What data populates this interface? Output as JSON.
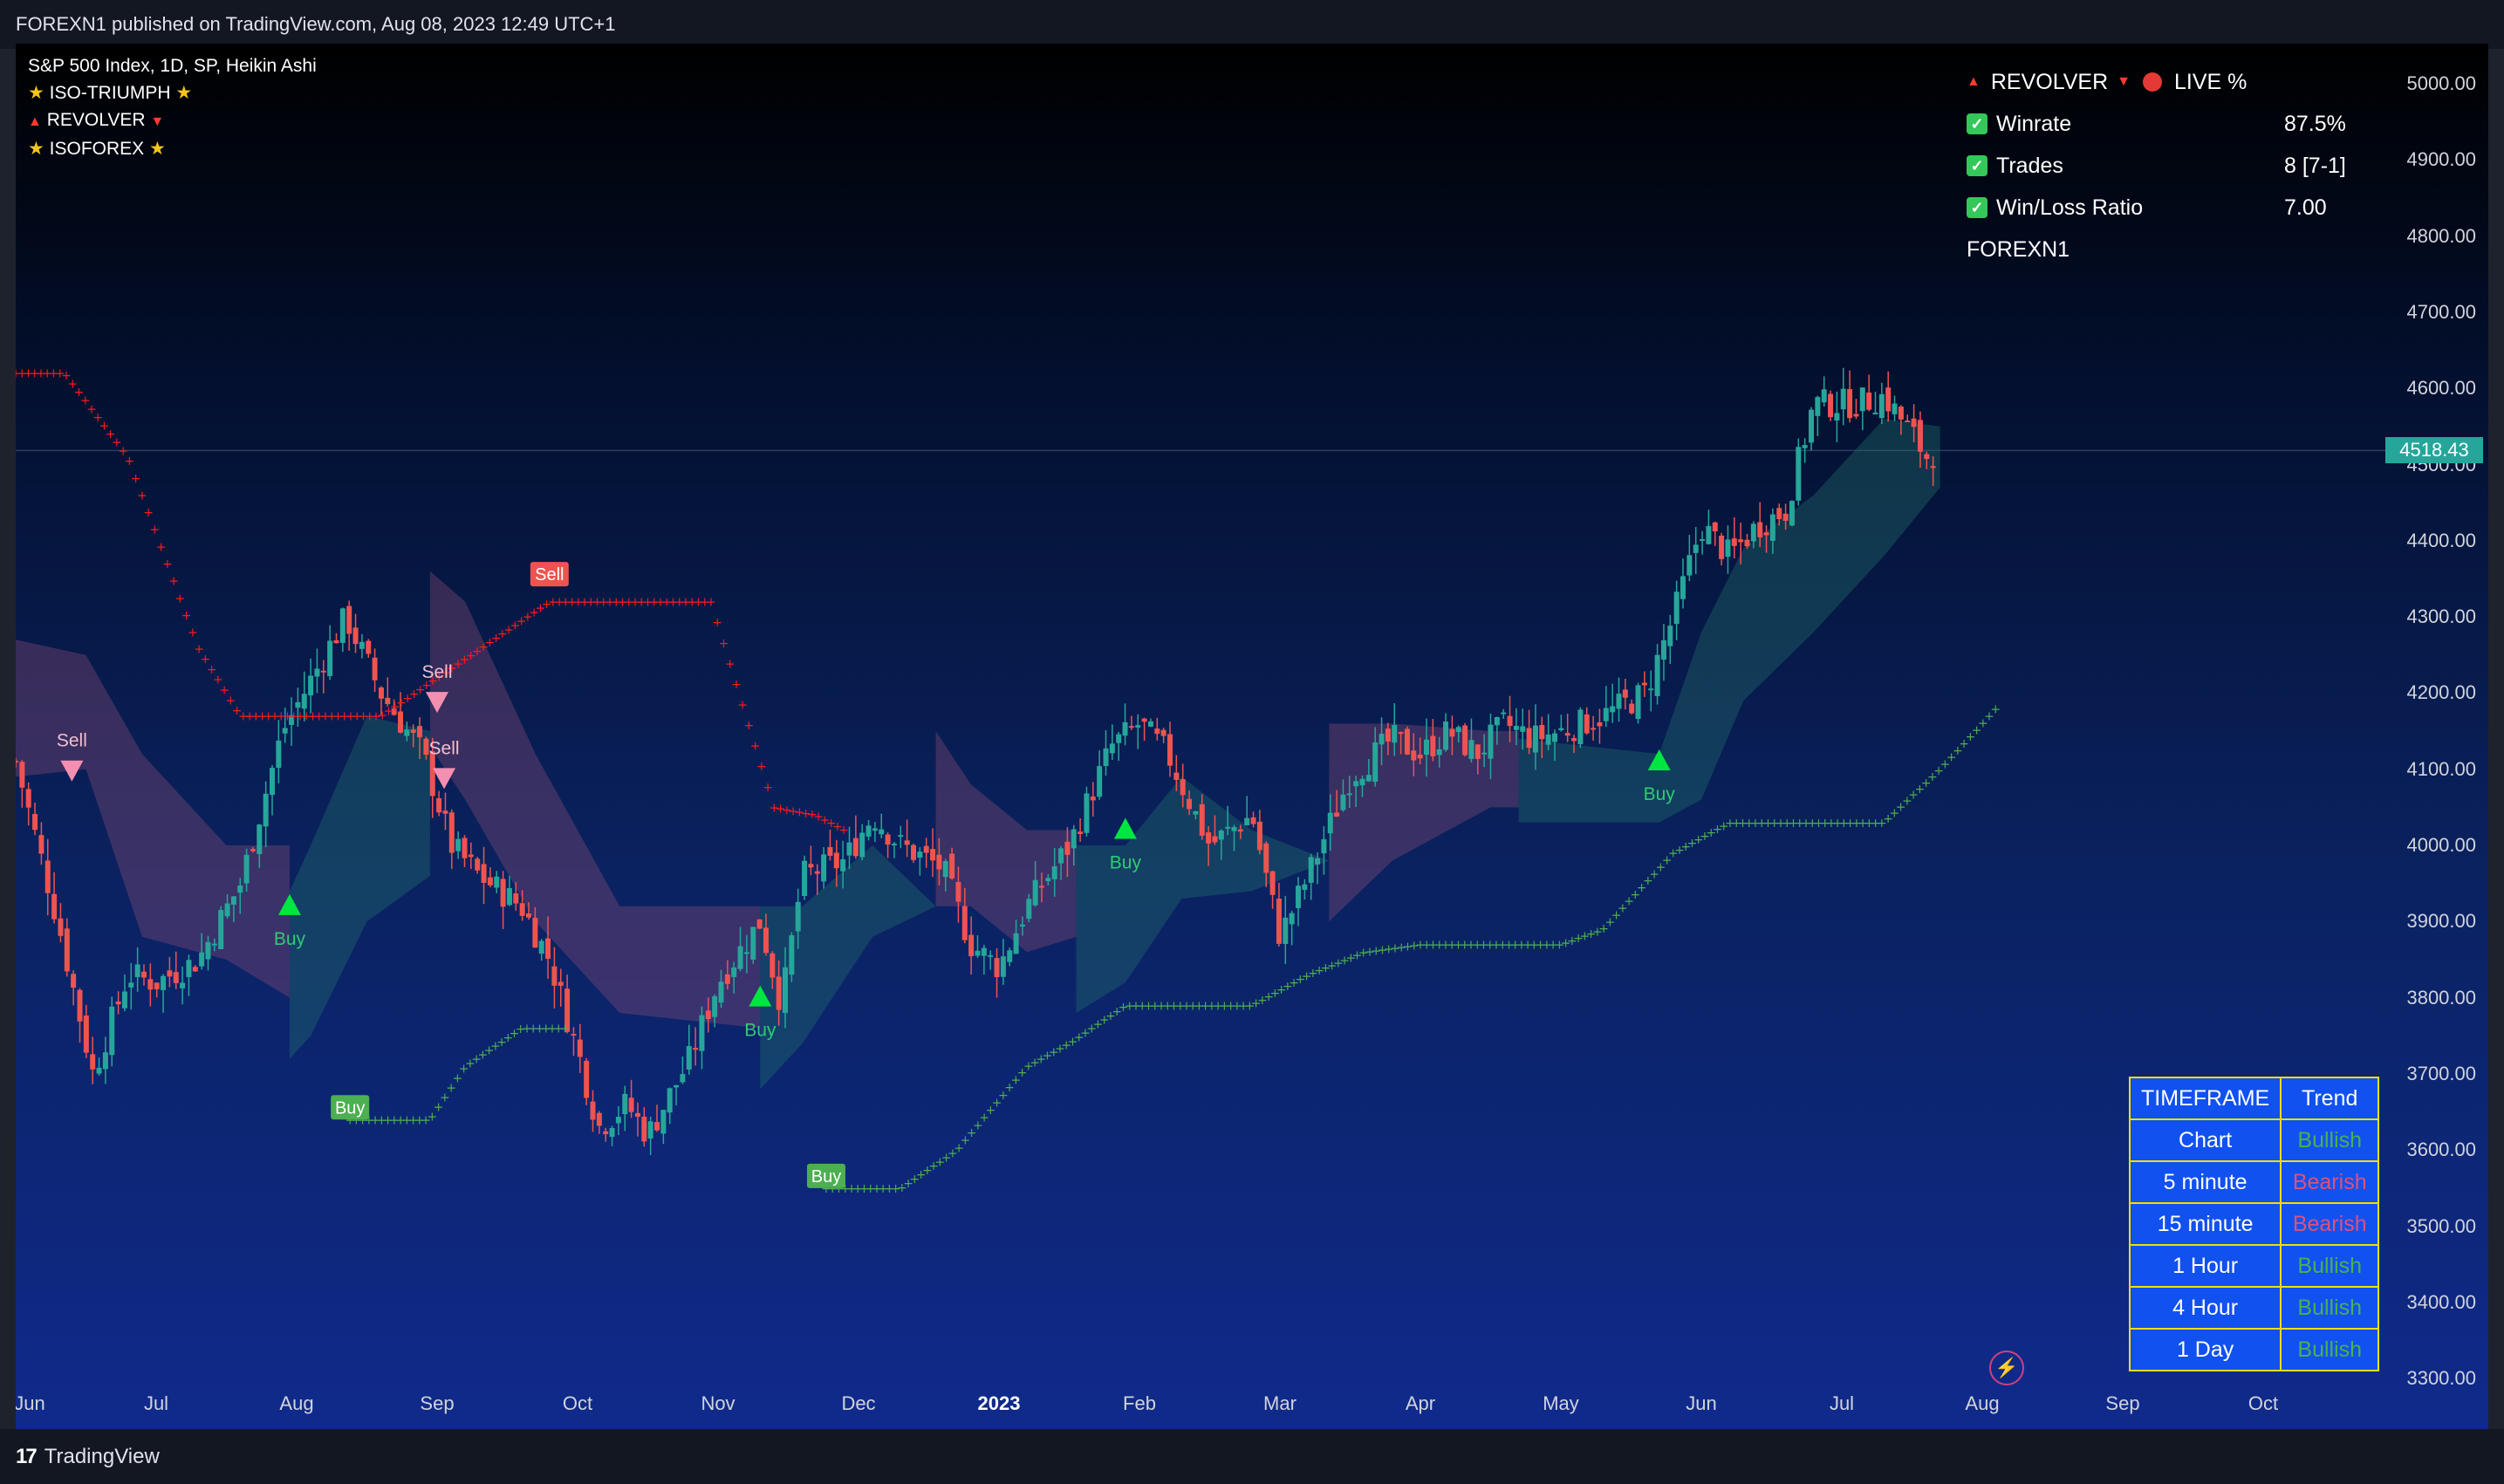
{
  "header": {
    "text": "FOREXN1 published on TradingView.com, Aug 08, 2023 12:49 UTC+1"
  },
  "legend": {
    "symbol": "S&P 500 Index, 1D, SP, Heikin Ashi",
    "ind1": "ISO-TRIUMPH",
    "ind2": "REVOLVER",
    "ind3": "ISOFOREX"
  },
  "stats": {
    "title": "REVOLVER",
    "live": "LIVE %",
    "rows": [
      {
        "label": "Winrate",
        "value": "87.5%"
      },
      {
        "label": "Trades",
        "value": "8 [7-1]"
      },
      {
        "label": "Win/Loss Ratio",
        "value": "7.00"
      }
    ],
    "author": "FOREXN1"
  },
  "trend_table": {
    "header": [
      "TIMEFRAME",
      "Trend"
    ],
    "rows": [
      {
        "tf": "Chart",
        "trend": "Bullish"
      },
      {
        "tf": "5 minute",
        "trend": "Bearish"
      },
      {
        "tf": "15 minute",
        "trend": "Bearish"
      },
      {
        "tf": "1 Hour",
        "trend": "Bullish"
      },
      {
        "tf": "4 Hour",
        "trend": "Bullish"
      },
      {
        "tf": "1 Day",
        "trend": "Bullish"
      }
    ]
  },
  "colors": {
    "up": "#26a69a",
    "down": "#ef5350",
    "bull": "#4caf50",
    "bear": "#e0507a",
    "bear_band": "rgba(150,80,120,0.35)",
    "bull_band": "rgba(38,120,110,0.35)",
    "stop_red": "#ff1a1a",
    "stop_green": "#4caf50",
    "buy_tri": "#00e640",
    "sell_tri": "#f48fb1"
  },
  "last_price": "4518.43",
  "footer": {
    "brand": "TradingView"
  },
  "chart_data": {
    "type": "candlestick",
    "title": "S&P 500 Index, 1D, SP, Heikin Ashi",
    "ylim": [
      3260,
      5050
    ],
    "y_ticks": [
      "3300.00",
      "3400.00",
      "3500.00",
      "3600.00",
      "3700.00",
      "3800.00",
      "3900.00",
      "4000.00",
      "4100.00",
      "4200.00",
      "4300.00",
      "4400.00",
      "4500.00",
      "4600.00",
      "4700.00",
      "4800.00",
      "4900.00",
      "5000.00"
    ],
    "x_labels": [
      "Jun",
      "Jul",
      "Aug",
      "Sep",
      "Oct",
      "Nov",
      "Dec",
      "2023",
      "Feb",
      "Mar",
      "Apr",
      "May",
      "Jun",
      "Jul",
      "Aug",
      "Sep",
      "Oct"
    ],
    "x_label_months": [
      0,
      1,
      2,
      3,
      4,
      5,
      6,
      7,
      8,
      9,
      10,
      11,
      12,
      13,
      14,
      15,
      16
    ],
    "close_path": [
      [
        0,
        4110
      ],
      [
        0.3,
        3900
      ],
      [
        0.55,
        3700
      ],
      [
        0.8,
        3830
      ],
      [
        1.0,
        3820
      ],
      [
        1.3,
        3850
      ],
      [
        1.6,
        3950
      ],
      [
        1.9,
        4150
      ],
      [
        2.2,
        4250
      ],
      [
        2.35,
        4300
      ],
      [
        2.6,
        4200
      ],
      [
        2.9,
        4120
      ],
      [
        3.1,
        4000
      ],
      [
        3.3,
        3960
      ],
      [
        3.6,
        3920
      ],
      [
        3.8,
        3850
      ],
      [
        4.0,
        3730
      ],
      [
        4.15,
        3630
      ],
      [
        4.35,
        3660
      ],
      [
        4.5,
        3620
      ],
      [
        4.8,
        3720
      ],
      [
        5.0,
        3820
      ],
      [
        5.3,
        3900
      ],
      [
        5.45,
        3790
      ],
      [
        5.6,
        3960
      ],
      [
        5.9,
        3980
      ],
      [
        6.1,
        4040
      ],
      [
        6.3,
        4000
      ],
      [
        6.6,
        3970
      ],
      [
        6.8,
        3870
      ],
      [
        7.0,
        3840
      ],
      [
        7.2,
        3920
      ],
      [
        7.5,
        4000
      ],
      [
        7.8,
        4130
      ],
      [
        8.0,
        4160
      ],
      [
        8.2,
        4120
      ],
      [
        8.5,
        4000
      ],
      [
        8.8,
        4040
      ],
      [
        9.0,
        3880
      ],
      [
        9.2,
        3960
      ],
      [
        9.5,
        4090
      ],
      [
        9.8,
        4140
      ],
      [
        10.0,
        4120
      ],
      [
        10.2,
        4150
      ],
      [
        10.4,
        4120
      ],
      [
        10.6,
        4160
      ],
      [
        10.8,
        4140
      ],
      [
        11.0,
        4150
      ],
      [
        11.3,
        4170
      ],
      [
        11.6,
        4200
      ],
      [
        11.8,
        4300
      ],
      [
        12.0,
        4420
      ],
      [
        12.2,
        4380
      ],
      [
        12.4,
        4420
      ],
      [
        12.6,
        4440
      ],
      [
        12.8,
        4580
      ],
      [
        13.1,
        4580
      ],
      [
        13.3,
        4590
      ],
      [
        13.5,
        4540
      ],
      [
        13.6,
        4510
      ],
      [
        13.65,
        4515
      ]
    ],
    "markers": [
      {
        "label": "Sell",
        "type": "sell",
        "m": 0.4,
        "y": 4100
      },
      {
        "label": "Buy",
        "type": "buy",
        "m": 1.95,
        "y": 3920
      },
      {
        "label": "Sell",
        "type": "sell",
        "m": 3.0,
        "y": 4190
      },
      {
        "label": "Sell",
        "type": "sell",
        "m": 3.05,
        "y": 4090
      },
      {
        "label": "Buy",
        "type": "buy",
        "m": 5.3,
        "y": 3800
      },
      {
        "label": "Buy",
        "type": "buy",
        "m": 7.9,
        "y": 4020
      },
      {
        "label": "Buy",
        "type": "buy",
        "m": 11.7,
        "y": 4110
      }
    ],
    "boxed_labels": [
      {
        "label": "Sell",
        "type": "sell",
        "m": 3.8,
        "y": 4340
      },
      {
        "label": "Buy",
        "type": "buy",
        "m": 2.38,
        "y": 3640
      },
      {
        "label": "Buy",
        "type": "buy",
        "m": 5.77,
        "y": 3550
      }
    ],
    "stop_red": [
      [
        0,
        4620
      ],
      [
        0.35,
        4620
      ],
      [
        0.8,
        4510
      ],
      [
        1.3,
        4260
      ],
      [
        1.6,
        4170
      ],
      [
        2.3,
        4170
      ],
      [
        2.6,
        4170
      ],
      [
        3.8,
        4320
      ],
      [
        4.95,
        4320
      ],
      [
        5.4,
        4050
      ],
      [
        5.7,
        4040
      ],
      [
        5.9,
        4020
      ]
    ],
    "stop_green": [
      [
        2.38,
        3640
      ],
      [
        2.95,
        3640
      ],
      [
        3.2,
        3710
      ],
      [
        3.6,
        3760
      ],
      [
        3.95,
        3760
      ],
      [
        5.77,
        3550
      ],
      [
        6.3,
        3550
      ],
      [
        6.7,
        3600
      ],
      [
        7.2,
        3710
      ],
      [
        7.5,
        3740
      ],
      [
        7.9,
        3790
      ],
      [
        8.8,
        3790
      ],
      [
        9.2,
        3830
      ],
      [
        9.6,
        3860
      ],
      [
        10.0,
        3870
      ],
      [
        11.0,
        3870
      ],
      [
        11.3,
        3890
      ],
      [
        11.8,
        3990
      ],
      [
        12.2,
        4030
      ],
      [
        13.3,
        4030
      ],
      [
        13.7,
        4100
      ],
      [
        14.1,
        4180
      ]
    ],
    "bands": [
      {
        "type": "bear",
        "pts": [
          [
            0,
            4270,
            4090
          ],
          [
            0.5,
            4250,
            4100
          ],
          [
            0.9,
            4120,
            3880
          ],
          [
            1.5,
            4000,
            3850
          ],
          [
            1.95,
            4000,
            3800
          ]
        ]
      },
      {
        "type": "bull",
        "pts": [
          [
            1.95,
            3940,
            3720
          ],
          [
            2.1,
            4000,
            3750
          ],
          [
            2.5,
            4170,
            3900
          ],
          [
            2.95,
            4150,
            3960
          ]
        ]
      },
      {
        "type": "bear",
        "pts": [
          [
            2.95,
            4360,
            4130
          ],
          [
            3.2,
            4320,
            4060
          ],
          [
            3.7,
            4120,
            3900
          ],
          [
            4.3,
            3920,
            3780
          ],
          [
            5.3,
            3920,
            3760
          ]
        ]
      },
      {
        "type": "bull",
        "pts": [
          [
            5.3,
            3920,
            3680
          ],
          [
            5.6,
            3920,
            3740
          ],
          [
            6.1,
            4000,
            3880
          ],
          [
            6.55,
            3920,
            3920
          ]
        ]
      },
      {
        "type": "bear",
        "pts": [
          [
            6.55,
            4150,
            3920
          ],
          [
            6.8,
            4080,
            3920
          ],
          [
            7.2,
            4020,
            3860
          ],
          [
            7.55,
            4020,
            3880
          ]
        ]
      },
      {
        "type": "bull",
        "pts": [
          [
            7.55,
            4000,
            3780
          ],
          [
            7.9,
            4000,
            3820
          ],
          [
            8.3,
            4090,
            3930
          ],
          [
            8.8,
            4020,
            3940
          ],
          [
            9.35,
            3980,
            3980
          ]
        ]
      },
      {
        "type": "bear",
        "pts": [
          [
            9.35,
            4160,
            3900
          ],
          [
            9.8,
            4160,
            3980
          ],
          [
            10.5,
            4150,
            4050
          ],
          [
            10.7,
            4150,
            4050
          ]
        ]
      },
      {
        "type": "bull",
        "pts": [
          [
            10.7,
            4140,
            4030
          ],
          [
            11.7,
            4120,
            4030
          ],
          [
            12.0,
            4280,
            4060
          ],
          [
            12.3,
            4390,
            4190
          ],
          [
            12.8,
            4460,
            4280
          ],
          [
            13.3,
            4560,
            4380
          ],
          [
            13.7,
            4550,
            4470
          ]
        ]
      }
    ]
  }
}
